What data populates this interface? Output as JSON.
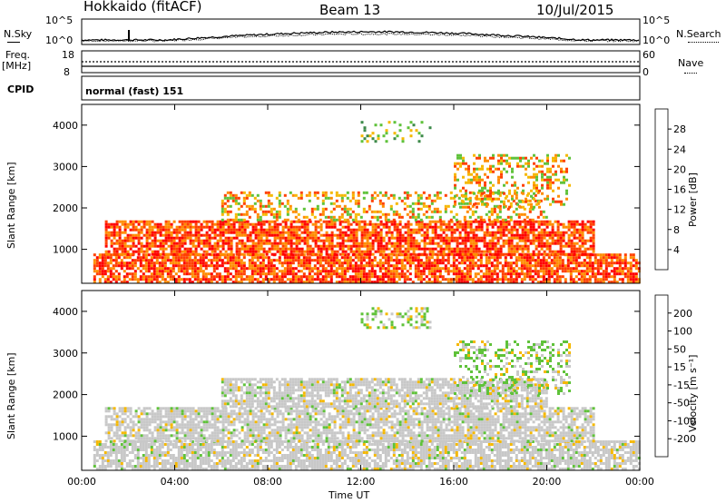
{
  "header": {
    "station": "Hokkaido (fitACF)",
    "beam": "Beam 13",
    "date": "10/Jul/2015"
  },
  "top_panels": {
    "nsky_label": "N.Sky",
    "nsearch_label": "N.Search",
    "noise_ticks_left": [
      "10^5",
      "10^0"
    ],
    "noise_ticks_right": [
      "10^5",
      "10^0"
    ],
    "freq_label": "Freq.",
    "freq_unit": "[MHz]",
    "freq_ticks": [
      "18",
      "8"
    ],
    "nave_label": "Nave",
    "nave_ticks": [
      "60",
      "0"
    ],
    "cpid_label": "CPID",
    "cpid_value": "normal (fast) 151"
  },
  "chart_data": [
    {
      "type": "heatmap",
      "title": "",
      "xlabel": "Time UT",
      "ylabel": "Slant Range [km]",
      "x_ticks": [
        "00:00",
        "04:00",
        "08:00",
        "12:00",
        "16:00",
        "20:00",
        "00:00"
      ],
      "y_ticks": [
        "1000",
        "2000",
        "3000",
        "4000"
      ],
      "xlim": [
        0,
        24
      ],
      "ylim": [
        180,
        4500
      ],
      "colorbar": {
        "label": "Power [dB]",
        "ticks": [
          "4",
          "8",
          "12",
          "16",
          "20",
          "24",
          "28"
        ],
        "range": [
          0,
          32
        ],
        "colors": [
          "#0000ff",
          "#2e4fb0",
          "#3d8a4a",
          "#5fc23a",
          "#f5b800",
          "#ff8c00",
          "#ff4000",
          "#ff0000"
        ]
      },
      "bands": [
        {
          "t0": 0.5,
          "t1": 24,
          "r0": 200,
          "r1": 900,
          "level": "high"
        },
        {
          "t0": 1,
          "t1": 22,
          "r0": 900,
          "r1": 1700,
          "level": "high"
        },
        {
          "t0": 6,
          "t1": 20,
          "r0": 1700,
          "r1": 2400,
          "level": "medium"
        },
        {
          "t0": 12,
          "t1": 15,
          "r0": 3600,
          "r1": 4100,
          "level": "low"
        },
        {
          "t0": 16,
          "t1": 21,
          "r0": 2000,
          "r1": 3300,
          "level": "medium"
        }
      ]
    },
    {
      "type": "heatmap",
      "title": "",
      "xlabel": "Time UT",
      "ylabel": "Slant Range [km]",
      "x_ticks": [
        "00:00",
        "04:00",
        "08:00",
        "12:00",
        "16:00",
        "20:00",
        "00:00"
      ],
      "y_ticks": [
        "1000",
        "2000",
        "3000",
        "4000"
      ],
      "xlim": [
        0,
        24
      ],
      "ylim": [
        180,
        4500
      ],
      "colorbar": {
        "label": "Velocity [m s⁻¹]",
        "ticks": [
          "200",
          "100",
          "50",
          "15",
          "-15",
          "-50",
          "-100",
          "-200"
        ],
        "range": [
          -250,
          250
        ],
        "colors": [
          "#ff0000",
          "#ff4000",
          "#ff8c00",
          "#f5b800",
          "#c8c8c8",
          "#5fc23a",
          "#3d8a4a",
          "#2e4fb0",
          "#0000ff"
        ]
      },
      "bands": [
        {
          "t0": 0.5,
          "t1": 24,
          "r0": 200,
          "r1": 900,
          "level": "ground"
        },
        {
          "t0": 1,
          "t1": 22,
          "r0": 900,
          "r1": 1700,
          "level": "ground"
        },
        {
          "t0": 6,
          "t1": 20,
          "r0": 1700,
          "r1": 2400,
          "level": "ground"
        },
        {
          "t0": 12,
          "t1": 15,
          "r0": 3600,
          "r1": 4100,
          "level": "mixed"
        },
        {
          "t0": 16,
          "t1": 21,
          "r0": 2000,
          "r1": 3300,
          "level": "mixed"
        }
      ]
    }
  ]
}
